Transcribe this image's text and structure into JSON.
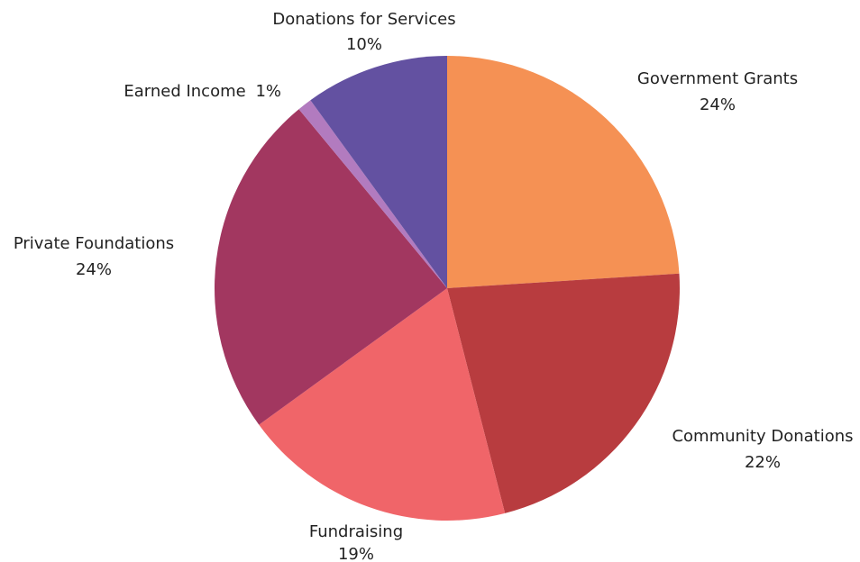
{
  "chart_data": {
    "type": "pie",
    "start_angle_deg": 0,
    "direction": "clockwise",
    "slices": [
      {
        "name": "Government Grants",
        "value": 24,
        "pct_label": "24%",
        "color": "#f59154"
      },
      {
        "name": "Community Donations",
        "value": 22,
        "pct_label": "22%",
        "color": "#b83c3f"
      },
      {
        "name": "Fundraising",
        "value": 19,
        "pct_label": "19%",
        "color": "#f06569"
      },
      {
        "name": "Private Foundations",
        "value": 24,
        "pct_label": "24%",
        "color": "#a23760"
      },
      {
        "name": "Earned Income",
        "value": 1,
        "pct_label": "1%",
        "color": "#b27bbf"
      },
      {
        "name": "Donations for Services",
        "value": 10,
        "pct_label": "10%",
        "color": "#6351a1"
      }
    ]
  }
}
